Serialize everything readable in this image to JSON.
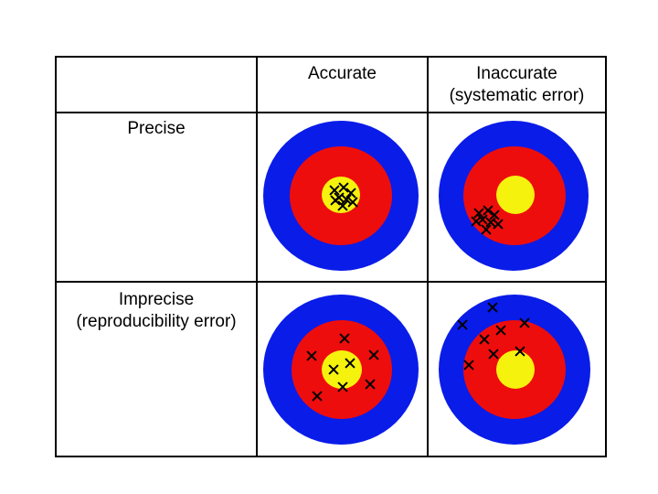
{
  "columns": {
    "accurate": "Accurate",
    "inaccurate": "Inaccurate\n(systematic error)"
  },
  "rows": {
    "precise": "Precise",
    "imprecise": "Imprecise\n(reproducibility error)"
  },
  "colors": {
    "outer_ring": "#0a1ce8",
    "middle_ring": "#ee0d0d",
    "bullseye": "#f5f20e",
    "marks": "#000000"
  },
  "targets": [
    {
      "name": "precise-accurate",
      "marks": 8
    },
    {
      "name": "precise-inaccurate",
      "marks": 8
    },
    {
      "name": "imprecise-accurate",
      "marks": 8
    },
    {
      "name": "imprecise-inaccurate",
      "marks": 9
    }
  ]
}
